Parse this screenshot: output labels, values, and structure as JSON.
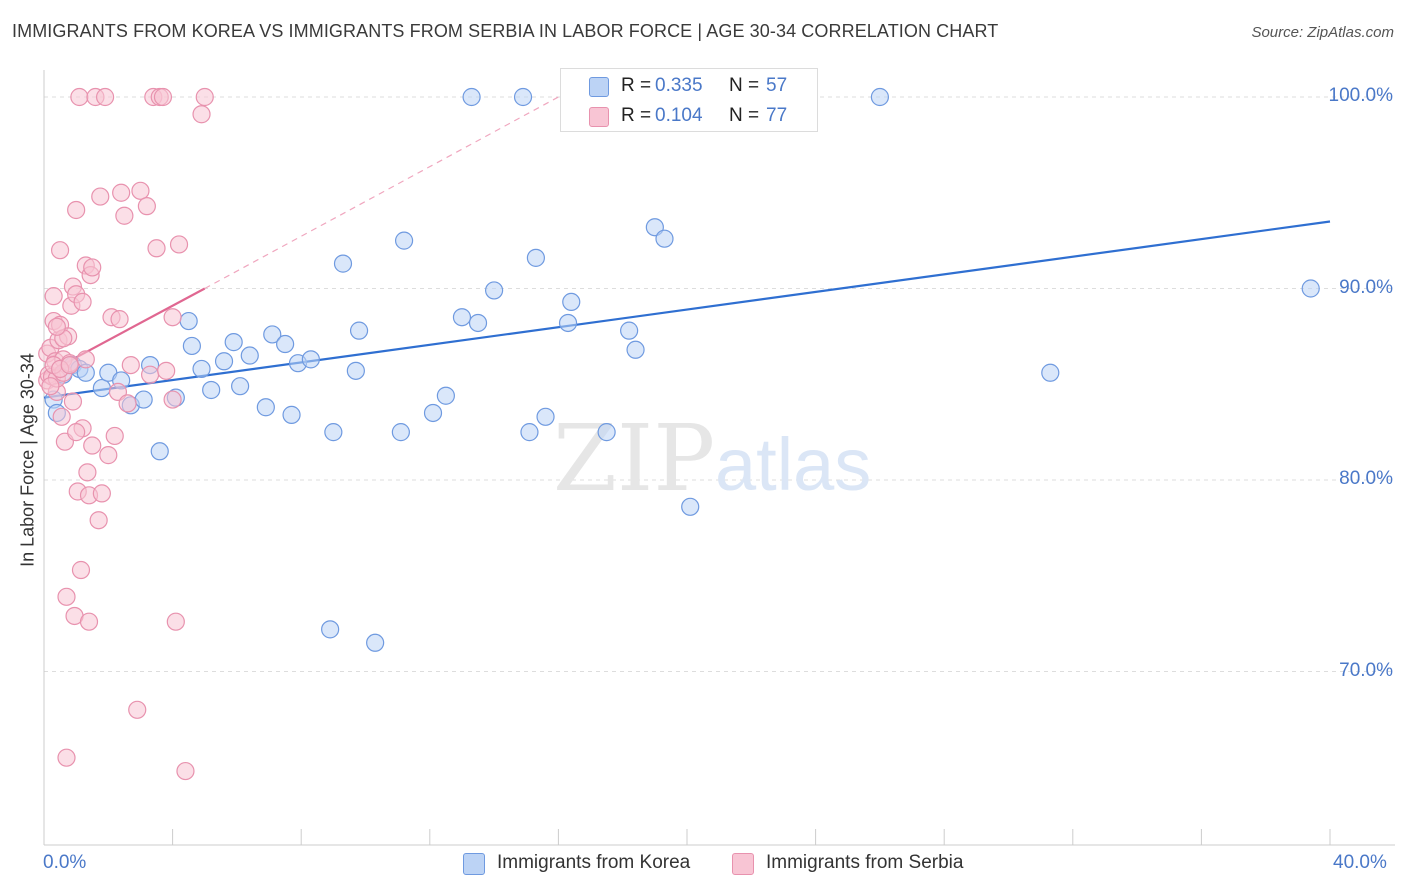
{
  "title": "IMMIGRANTS FROM KOREA VS IMMIGRANTS FROM SERBIA IN LABOR FORCE | AGE 30-34 CORRELATION CHART",
  "source": "Source: ZipAtlas.com",
  "watermark": {
    "zip": "ZIP",
    "atlas": "atlas"
  },
  "stats": [
    {
      "r_label": "R =",
      "r_value": "0.335",
      "n_label": "N =",
      "n_value": "57",
      "color": "#6f9ae0"
    },
    {
      "r_label": "R =",
      "r_value": "0.104",
      "n_label": "N =",
      "n_value": "77",
      "color": "#e892ae"
    }
  ],
  "legend": [
    {
      "label": "Immigrants from Korea",
      "color": "#bcd3f5"
    },
    {
      "label": "Immigrants from Serbia",
      "color": "#f8c5d4"
    }
  ],
  "chart_data": {
    "type": "scatter",
    "title": "IMMIGRANTS FROM KOREA VS IMMIGRANTS FROM SERBIA IN LABOR FORCE | AGE 30-34 CORRELATION CHART",
    "xlabel": "",
    "ylabel": "In Labor Force | Age 30-34",
    "xlim": [
      0,
      40
    ],
    "ylim": [
      62,
      102
    ],
    "x_tick_labels": [
      "0.0%",
      "40.0%"
    ],
    "y_ticks": [
      70,
      80,
      90,
      100
    ],
    "y_tick_labels": [
      "70.0%",
      "80.0%",
      "90.0%",
      "100.0%"
    ],
    "grid": true,
    "series": [
      {
        "name": "Immigrants from Korea",
        "color": "#6f9ae0",
        "fill": "#bcd3f5",
        "trend": {
          "x": [
            0,
            40
          ],
          "y": [
            84.3,
            93.5
          ],
          "dashed_extension": false
        },
        "points": [
          [
            0.3,
            84.2
          ],
          [
            0.4,
            83.5
          ],
          [
            0.6,
            85.5
          ],
          [
            0.9,
            86.0
          ],
          [
            1.1,
            85.8
          ],
          [
            1.3,
            85.6
          ],
          [
            1.8,
            84.8
          ],
          [
            2.0,
            85.6
          ],
          [
            2.4,
            85.2
          ],
          [
            2.7,
            83.9
          ],
          [
            3.1,
            84.2
          ],
          [
            3.3,
            86.0
          ],
          [
            3.6,
            81.5
          ],
          [
            4.1,
            84.3
          ],
          [
            4.5,
            88.3
          ],
          [
            4.6,
            87.0
          ],
          [
            4.9,
            85.8
          ],
          [
            5.2,
            84.7
          ],
          [
            5.6,
            86.2
          ],
          [
            5.9,
            87.2
          ],
          [
            6.1,
            84.9
          ],
          [
            6.4,
            86.5
          ],
          [
            6.9,
            83.8
          ],
          [
            7.1,
            87.6
          ],
          [
            7.5,
            87.1
          ],
          [
            7.7,
            83.4
          ],
          [
            7.9,
            86.1
          ],
          [
            8.3,
            86.3
          ],
          [
            8.9,
            72.2
          ],
          [
            9.0,
            82.5
          ],
          [
            9.3,
            91.3
          ],
          [
            9.7,
            85.7
          ],
          [
            9.8,
            87.8
          ],
          [
            10.3,
            71.5
          ],
          [
            11.1,
            82.5
          ],
          [
            11.2,
            92.5
          ],
          [
            12.1,
            83.5
          ],
          [
            12.5,
            84.4
          ],
          [
            13.0,
            88.5
          ],
          [
            13.3,
            100.0
          ],
          [
            13.5,
            88.2
          ],
          [
            14.0,
            89.9
          ],
          [
            14.9,
            100.0
          ],
          [
            15.1,
            82.5
          ],
          [
            15.3,
            91.6
          ],
          [
            15.6,
            83.3
          ],
          [
            16.3,
            88.2
          ],
          [
            16.4,
            89.3
          ],
          [
            17.5,
            82.5
          ],
          [
            18.2,
            87.8
          ],
          [
            18.4,
            86.8
          ],
          [
            19.0,
            93.2
          ],
          [
            19.3,
            92.6
          ],
          [
            20.1,
            78.6
          ],
          [
            26.0,
            100.0
          ],
          [
            31.3,
            85.6
          ],
          [
            39.4,
            90.0
          ]
        ]
      },
      {
        "name": "Immigrants from Serbia",
        "color": "#e892ae",
        "fill": "#f8c5d4",
        "trend": {
          "x": [
            0,
            5.0
          ],
          "y": [
            85.5,
            90.0
          ],
          "dashed_extension": true,
          "dashed_to": [
            16.0,
            100.0
          ]
        },
        "points": [
          [
            0.1,
            85.2
          ],
          [
            0.1,
            86.6
          ],
          [
            0.15,
            85.5
          ],
          [
            0.2,
            86.9
          ],
          [
            0.25,
            85.4
          ],
          [
            0.3,
            88.3
          ],
          [
            0.3,
            89.6
          ],
          [
            0.35,
            86.2
          ],
          [
            0.4,
            84.6
          ],
          [
            0.4,
            85.3
          ],
          [
            0.45,
            87.3
          ],
          [
            0.5,
            92.0
          ],
          [
            0.5,
            88.1
          ],
          [
            0.55,
            83.3
          ],
          [
            0.6,
            86.3
          ],
          [
            0.6,
            85.6
          ],
          [
            0.65,
            82.0
          ],
          [
            0.7,
            73.9
          ],
          [
            0.7,
            65.5
          ],
          [
            0.75,
            87.5
          ],
          [
            0.8,
            86.1
          ],
          [
            0.85,
            89.1
          ],
          [
            0.9,
            90.1
          ],
          [
            0.9,
            84.1
          ],
          [
            0.95,
            72.9
          ],
          [
            1.0,
            94.1
          ],
          [
            1.0,
            89.7
          ],
          [
            1.05,
            79.4
          ],
          [
            1.1,
            100.0
          ],
          [
            1.15,
            75.3
          ],
          [
            1.2,
            82.7
          ],
          [
            1.2,
            89.3
          ],
          [
            1.3,
            91.2
          ],
          [
            1.3,
            86.3
          ],
          [
            1.35,
            80.4
          ],
          [
            1.4,
            72.6
          ],
          [
            1.4,
            79.2
          ],
          [
            1.45,
            90.7
          ],
          [
            1.5,
            81.8
          ],
          [
            1.6,
            100.0
          ],
          [
            1.7,
            77.9
          ],
          [
            1.75,
            94.8
          ],
          [
            1.8,
            79.3
          ],
          [
            1.9,
            100.0
          ],
          [
            2.0,
            81.3
          ],
          [
            2.1,
            88.5
          ],
          [
            2.2,
            82.3
          ],
          [
            2.3,
            84.6
          ],
          [
            2.35,
            88.4
          ],
          [
            2.4,
            95.0
          ],
          [
            2.5,
            93.8
          ],
          [
            2.6,
            84.0
          ],
          [
            2.7,
            86.0
          ],
          [
            2.9,
            68.0
          ],
          [
            3.0,
            95.1
          ],
          [
            3.2,
            94.3
          ],
          [
            3.3,
            85.5
          ],
          [
            3.4,
            100.0
          ],
          [
            3.5,
            92.1
          ],
          [
            3.6,
            100.0
          ],
          [
            3.7,
            100.0
          ],
          [
            3.8,
            85.7
          ],
          [
            4.0,
            84.2
          ],
          [
            4.0,
            88.5
          ],
          [
            4.1,
            72.6
          ],
          [
            4.2,
            92.3
          ],
          [
            4.4,
            64.8
          ],
          [
            4.9,
            99.1
          ],
          [
            5.0,
            100.0
          ],
          [
            0.2,
            84.9
          ],
          [
            0.3,
            86.0
          ],
          [
            0.5,
            85.8
          ],
          [
            0.6,
            87.4
          ],
          [
            1.0,
            82.5
          ],
          [
            1.5,
            91.1
          ],
          [
            0.8,
            86.0
          ],
          [
            0.4,
            88.0
          ]
        ]
      }
    ]
  }
}
